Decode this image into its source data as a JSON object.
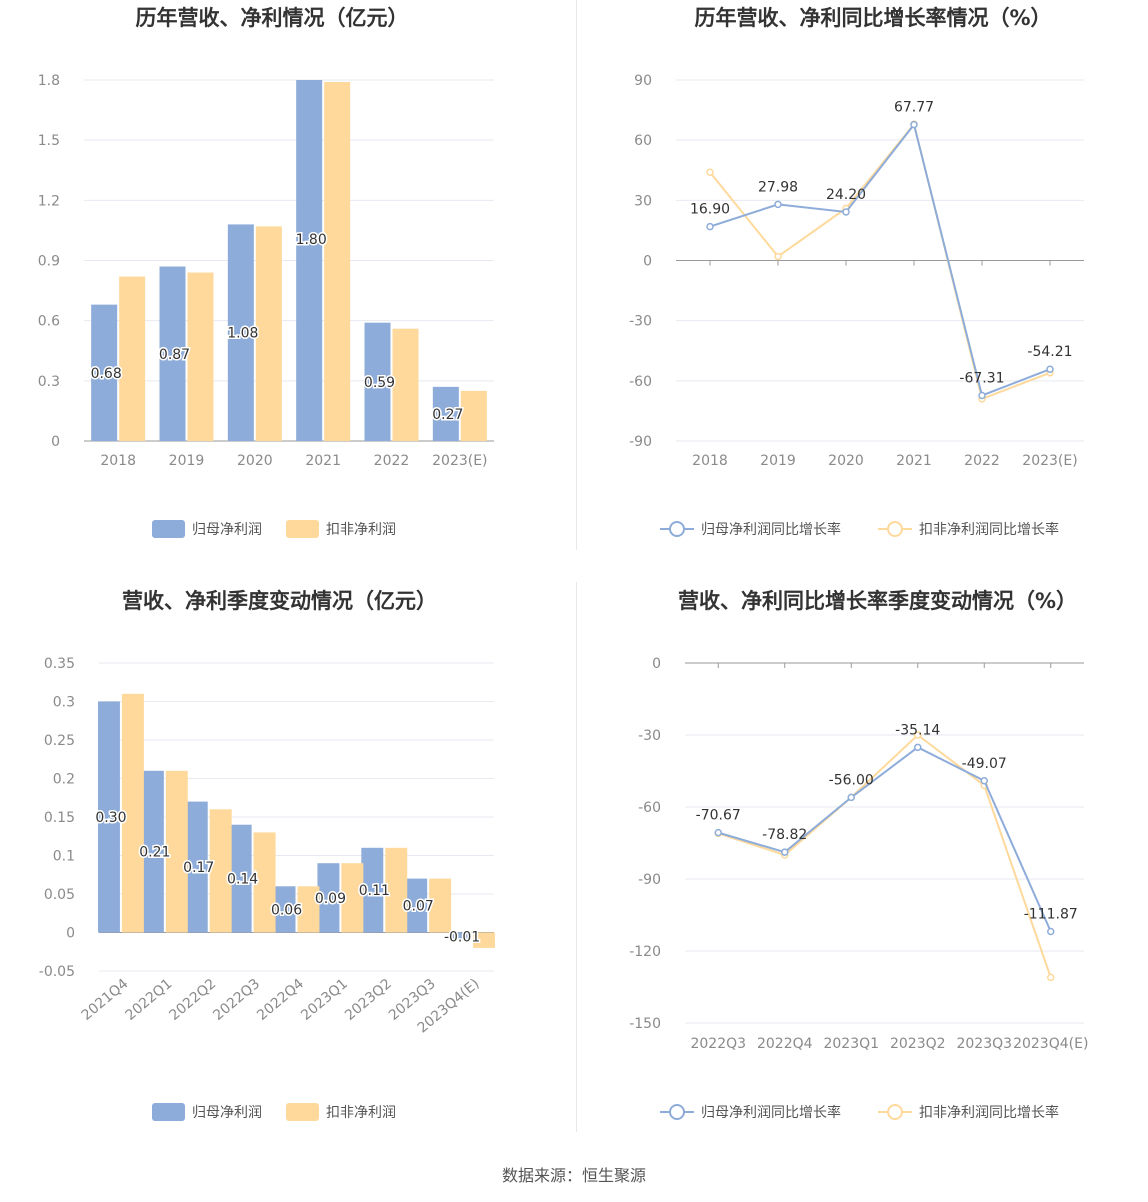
{
  "colors": {
    "series1": "#8eacd9",
    "series2": "#fed99b",
    "grid": "#e6e9f0",
    "axis": "#999999",
    "bar_label_bg": "#ffffff"
  },
  "source": "数据来源：恒生聚源",
  "chart_data": [
    {
      "type": "bar",
      "title": "历年营收、净利情况（亿元）",
      "categories": [
        "2018",
        "2019",
        "2020",
        "2021",
        "2022",
        "2023(E)"
      ],
      "ylim": [
        0,
        1.8
      ],
      "yticks": [
        "0",
        "0.3",
        "0.6",
        "0.9",
        "1.2",
        "1.5",
        "1.8"
      ],
      "series": [
        {
          "name": "归母净利润",
          "values": [
            0.68,
            0.87,
            1.08,
            1.8,
            0.59,
            0.27
          ],
          "labels": [
            "0.68",
            "0.87",
            "1.08",
            "1.80",
            "0.59",
            "0.27"
          ]
        },
        {
          "name": "扣非净利润",
          "values": [
            0.82,
            0.84,
            1.07,
            1.79,
            0.56,
            0.25
          ]
        }
      ],
      "legend": "bottom-center",
      "grid": true
    },
    {
      "type": "line",
      "title": "历年营收、净利同比增长率情况（%）",
      "categories": [
        "2018",
        "2019",
        "2020",
        "2021",
        "2022",
        "2023(E)"
      ],
      "ylim": [
        -90,
        90
      ],
      "yticks": [
        "-90",
        "-60",
        "-30",
        "0",
        "30",
        "60",
        "90"
      ],
      "series": [
        {
          "name": "归母净利润同比增长率",
          "values": [
            16.9,
            27.98,
            24.2,
            67.77,
            -67.31,
            -54.21
          ],
          "labels": [
            "16.90",
            "27.98",
            "24.20",
            "67.77",
            "-67.31",
            "-54.21"
          ]
        },
        {
          "name": "扣非净利润同比增长率",
          "values": [
            44,
            2,
            26,
            68,
            -69,
            -56
          ]
        }
      ],
      "legend": "bottom-center",
      "grid": true
    },
    {
      "type": "bar",
      "title": "营收、净利季度变动情况（亿元）",
      "categories": [
        "2021Q4",
        "2022Q1",
        "2022Q2",
        "2022Q3",
        "2022Q4",
        "2023Q1",
        "2023Q2",
        "2023Q3",
        "2023Q4(E)"
      ],
      "ylim": [
        -0.05,
        0.35
      ],
      "yticks": [
        "-0.05",
        "0",
        "0.05",
        "0.1",
        "0.15",
        "0.2",
        "0.25",
        "0.3",
        "0.35"
      ],
      "series": [
        {
          "name": "归母净利润",
          "values": [
            0.3,
            0.21,
            0.17,
            0.14,
            0.06,
            0.09,
            0.11,
            0.07,
            -0.01
          ],
          "labels": [
            "0.30",
            "0.21",
            "0.17",
            "0.14",
            "0.06",
            "0.09",
            "0.11",
            "0.07",
            "-0.01"
          ]
        },
        {
          "name": "扣非净利润",
          "values": [
            0.31,
            0.21,
            0.16,
            0.13,
            0.06,
            0.09,
            0.11,
            0.07,
            -0.02
          ]
        }
      ],
      "legend": "bottom-center",
      "grid": true
    },
    {
      "type": "line",
      "title": "营收、净利同比增长率季度变动情况（%）",
      "categories": [
        "2022Q3",
        "2022Q4",
        "2023Q1",
        "2023Q2",
        "2023Q3",
        "2023Q4(E)"
      ],
      "ylim": [
        -150,
        0
      ],
      "yticks": [
        "-150",
        "-120",
        "-90",
        "-60",
        "-30",
        "0"
      ],
      "series": [
        {
          "name": "归母净利润同比增长率",
          "values": [
            -70.67,
            -78.82,
            -56.0,
            -35.14,
            -49.07,
            -111.87
          ],
          "labels": [
            "-70.67",
            "-78.82",
            "-56.00",
            "-35.14",
            "-49.07",
            "-111.87"
          ]
        },
        {
          "name": "扣非净利润同比增长率",
          "values": [
            -71,
            -80,
            -56,
            -30,
            -51,
            -131
          ]
        }
      ],
      "legend": "bottom-center",
      "grid": true
    }
  ]
}
